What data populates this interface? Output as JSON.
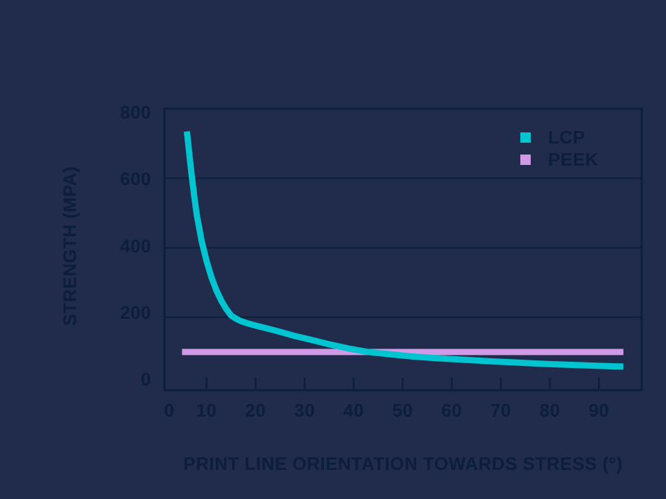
{
  "colors": {
    "background": "#212c4c",
    "ink": "#0c1e3a",
    "lcp": "#00c4cf",
    "peek": "#d09ae6"
  },
  "chart_data": {
    "type": "line",
    "title": "",
    "xlabel": "PRINT LINE ORIENTATION TOWARDS STRESS (°)",
    "ylabel": "STRENGTH (MPA)",
    "xlim": [
      0,
      98
    ],
    "ylim": [
      0,
      800
    ],
    "x_ticks": [
      0,
      10,
      20,
      30,
      40,
      50,
      60,
      70,
      80,
      90
    ],
    "x_tick_marks": [
      10,
      20,
      30,
      40,
      50,
      60,
      70,
      80,
      90
    ],
    "y_ticks": [
      0,
      200,
      400,
      600,
      800
    ],
    "gridlines_y": [
      200,
      400,
      600
    ],
    "grid": "horizontal-only",
    "legend_position": "top-right-inside",
    "series": [
      {
        "name": "LCP",
        "color": "#00c4cf",
        "x": [
          6,
          6.5,
          7,
          7.5,
          8,
          9,
          10,
          11,
          12,
          13,
          14,
          15,
          16,
          17,
          18,
          20,
          22,
          25,
          28,
          31,
          35,
          39,
          43,
          47,
          52,
          57,
          62,
          68,
          74,
          80,
          86,
          92,
          95
        ],
        "y": [
          735,
          668,
          605,
          548,
          495,
          420,
          362,
          315,
          278,
          248,
          224,
          205,
          196,
          189,
          184,
          176,
          169,
          158,
          146,
          136,
          122,
          110,
          100,
          94,
          87,
          82,
          78,
          73,
          69,
          65,
          62,
          59,
          58
        ]
      },
      {
        "name": "PEEK",
        "color": "#d09ae6",
        "x": [
          5,
          95
        ],
        "y": [
          100,
          100
        ]
      }
    ]
  }
}
